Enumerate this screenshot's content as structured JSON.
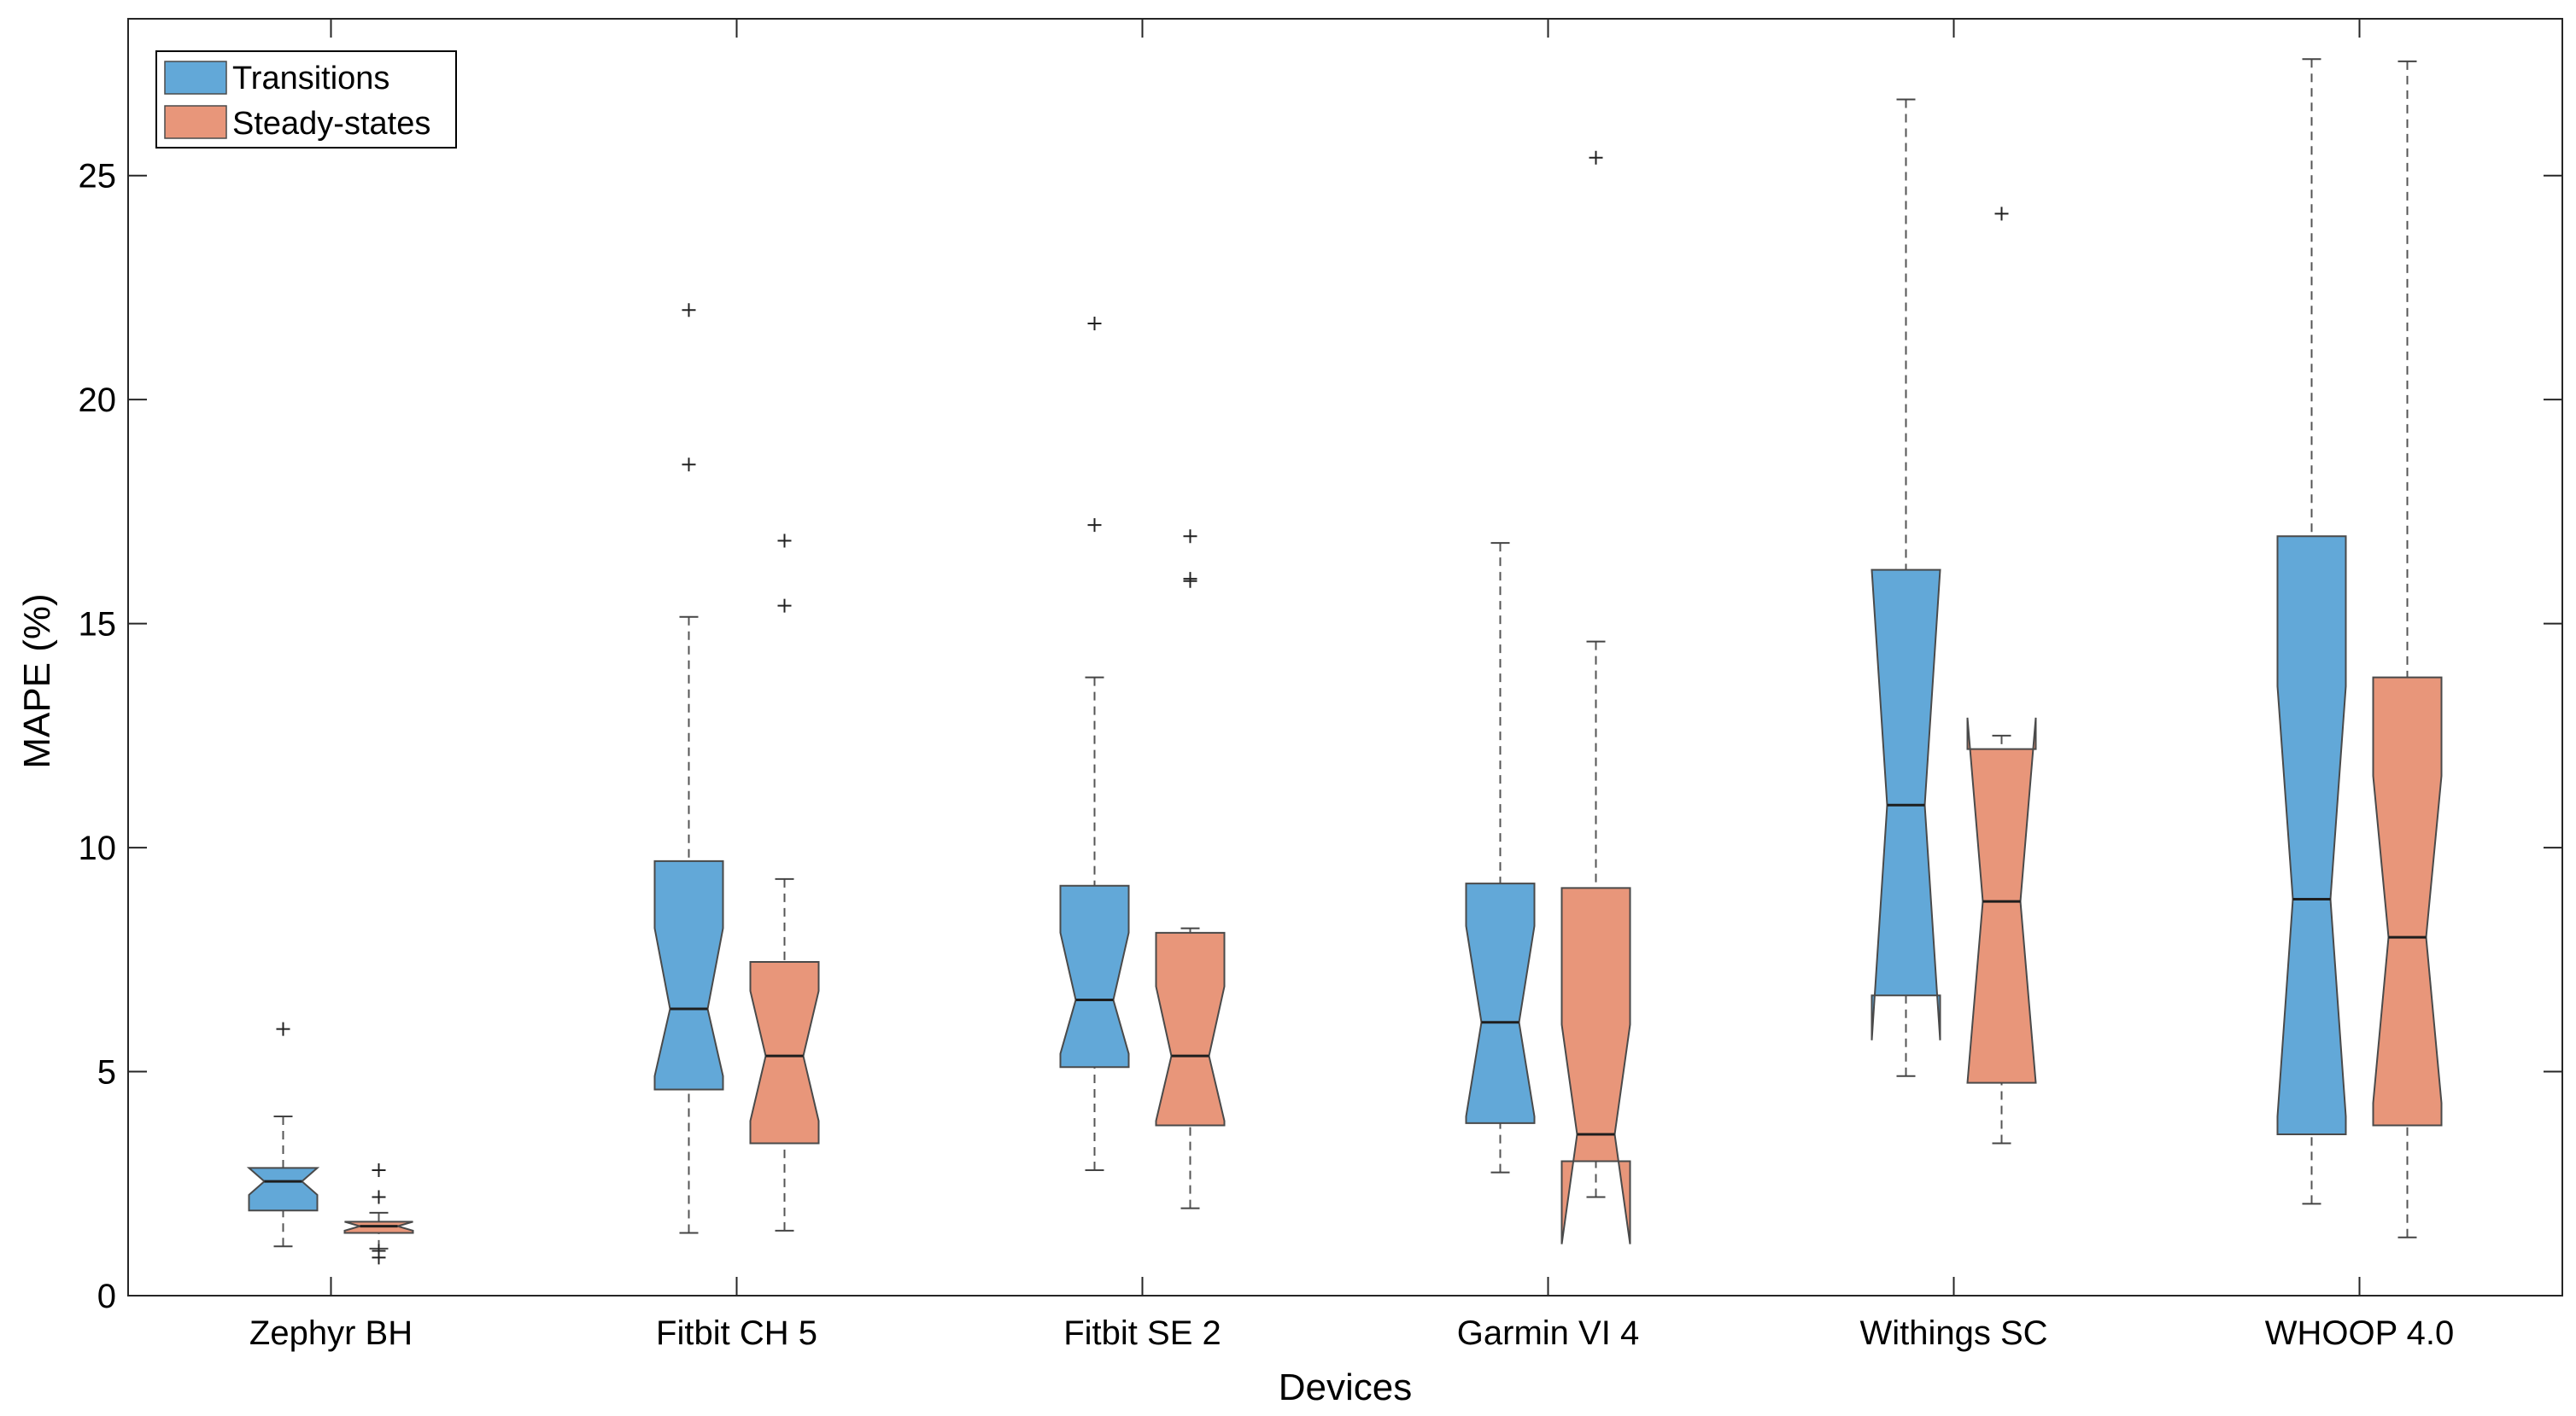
{
  "chart_data": {
    "type": "boxplot",
    "title": "",
    "xlabel": "Devices",
    "ylabel": "MAPE (%)",
    "ylim": [
      0,
      28.5
    ],
    "yticks": [
      0,
      5,
      10,
      15,
      20,
      25
    ],
    "grid": false,
    "notched": true,
    "legend": {
      "position": "top-left"
    },
    "categories": [
      "Zephyr BH",
      "Fitbit CH 5",
      "Fitbit SE 2",
      "Garmin VI 4",
      "Withings SC",
      "WHOOP 4.0"
    ],
    "series": [
      {
        "name": "Transitions",
        "color": "#62a8d8",
        "boxes": [
          {
            "whisker_low": 1.1,
            "q1": 1.9,
            "notch_low": 2.25,
            "median": 2.55,
            "notch_high": 2.85,
            "q3": 2.85,
            "whisker_high": 4.0,
            "outliers": [
              5.95
            ]
          },
          {
            "whisker_low": 1.4,
            "q1": 4.6,
            "notch_low": 4.9,
            "median": 6.4,
            "notch_high": 8.2,
            "q3": 9.7,
            "whisker_high": 15.15,
            "outliers": [
              18.55,
              22.0
            ]
          },
          {
            "whisker_low": 2.8,
            "q1": 5.1,
            "notch_low": 5.4,
            "median": 6.6,
            "notch_high": 8.1,
            "q3": 9.15,
            "whisker_high": 13.8,
            "outliers": [
              17.2,
              21.7
            ]
          },
          {
            "whisker_low": 2.75,
            "q1": 3.85,
            "notch_low": 4.0,
            "median": 6.1,
            "notch_high": 8.25,
            "q3": 9.2,
            "whisker_high": 16.8,
            "outliers": []
          },
          {
            "whisker_low": 4.9,
            "q1": 6.7,
            "notch_low": 5.7,
            "median": 10.95,
            "notch_high": 16.2,
            "q3": 16.2,
            "whisker_high": 26.7,
            "outliers": []
          },
          {
            "whisker_low": 2.05,
            "q1": 3.6,
            "notch_low": 4.0,
            "median": 8.85,
            "notch_high": 13.6,
            "q3": 16.95,
            "whisker_high": 27.6,
            "outliers": []
          }
        ]
      },
      {
        "name": "Steady-states",
        "color": "#e8967a",
        "boxes": [
          {
            "whisker_low": 1.05,
            "q1": 1.4,
            "notch_low": 1.45,
            "median": 1.55,
            "notch_high": 1.65,
            "q3": 1.65,
            "whisker_high": 1.85,
            "outliers": [
              0.85,
              1.0,
              2.2,
              2.8
            ]
          },
          {
            "whisker_low": 1.45,
            "q1": 3.4,
            "notch_low": 3.9,
            "median": 5.35,
            "notch_high": 6.8,
            "q3": 7.45,
            "whisker_high": 9.3,
            "outliers": [
              15.4,
              16.85
            ]
          },
          {
            "whisker_low": 1.95,
            "q1": 3.8,
            "notch_low": 3.9,
            "median": 5.35,
            "notch_high": 6.9,
            "q3": 8.1,
            "whisker_high": 8.2,
            "outliers": [
              15.95,
              16.0,
              16.95
            ]
          },
          {
            "whisker_low": 2.2,
            "q1": 3.0,
            "notch_low": 1.15,
            "median": 3.6,
            "notch_high": 6.05,
            "q3": 9.1,
            "whisker_high": 14.6,
            "outliers": [
              25.4
            ]
          },
          {
            "whisker_low": 3.4,
            "q1": 4.75,
            "notch_low": 4.75,
            "median": 8.8,
            "notch_high": 12.9,
            "q3": 12.2,
            "whisker_high": 12.5,
            "outliers": [
              24.15
            ]
          },
          {
            "whisker_low": 1.3,
            "q1": 3.8,
            "notch_low": 4.3,
            "median": 8.0,
            "notch_high": 11.6,
            "q3": 13.8,
            "whisker_high": 27.55,
            "outliers": []
          }
        ]
      }
    ]
  }
}
